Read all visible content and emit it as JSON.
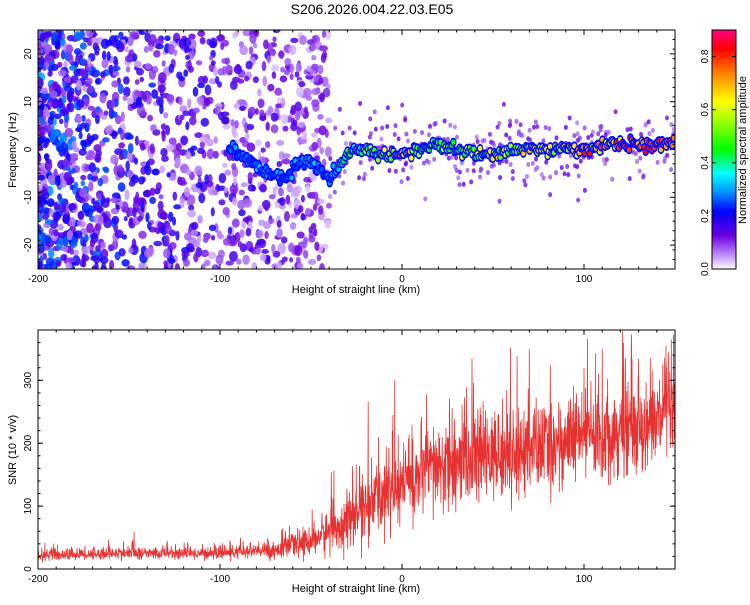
{
  "title": "S206.2026.004.22.03.E05",
  "colorbar": {
    "label": "Normalized spectral amplitude",
    "range": [
      0,
      0.9
    ],
    "ticks": [
      0.0,
      0.2,
      0.4,
      0.6,
      0.8
    ],
    "tick_labels": [
      "0.0",
      "0.2",
      "0.4",
      "0.6",
      "0.8"
    ]
  },
  "chart_data": [
    {
      "type": "heatmap",
      "name": "spectrogram",
      "xlabel": "Height of straight line (km)",
      "ylabel": "Frequency (Hz)",
      "xlim": [
        -200,
        150
      ],
      "ylim": [
        -25,
        25
      ],
      "xticks": [
        -200,
        -100,
        0,
        100
      ],
      "xtick_labels": [
        "-200",
        "-100",
        "0",
        "100"
      ],
      "yticks": [
        -20,
        -10,
        0,
        10,
        20
      ],
      "ytick_labels": [
        "-20",
        "-10",
        "0",
        "10",
        "20"
      ],
      "ridge": {
        "description": "frequency of peak amplitude vs height",
        "x": [
          -95,
          -85,
          -75,
          -65,
          -55,
          -45,
          -40,
          -30,
          -20,
          -10,
          0,
          10,
          20,
          30,
          40,
          50,
          60,
          70,
          80,
          90,
          100,
          110,
          120,
          130,
          140,
          150
        ],
        "freq": [
          0,
          -2,
          -5,
          -6,
          -2,
          -4,
          -7,
          -1,
          0,
          -1,
          -1,
          0,
          1,
          0,
          -1,
          -1,
          0,
          0,
          0,
          0,
          0,
          1,
          1,
          1,
          1,
          1
        ],
        "amp": [
          0.3,
          0.3,
          0.35,
          0.3,
          0.3,
          0.35,
          0.3,
          0.5,
          0.55,
          0.6,
          0.75,
          0.55,
          0.55,
          0.6,
          0.6,
          0.65,
          0.6,
          0.7,
          0.65,
          0.7,
          0.8,
          0.75,
          0.85,
          0.85,
          0.9,
          0.8
        ]
      },
      "noise": {
        "description": "scattered low-amplitude energy at heights below about -40 km",
        "x_range": [
          -200,
          -40
        ],
        "amp_range": [
          0.05,
          0.3
        ]
      }
    },
    {
      "type": "line",
      "name": "snr",
      "xlabel": "Height of straight line (km)",
      "ylabel": "SNR (10 * v/v)",
      "xlim": [
        -200,
        150
      ],
      "ylim": [
        0,
        380
      ],
      "xticks": [
        -200,
        -100,
        0,
        100
      ],
      "xtick_labels": [
        "-200",
        "-100",
        "0",
        "100"
      ],
      "yticks": [
        0,
        100,
        200,
        300
      ],
      "ytick_labels": [
        "0",
        "100",
        "200",
        "300"
      ],
      "color": "#e83232",
      "trend": {
        "description": "mean SNR vs height; signal is noisy around this mean",
        "x": [
          -200,
          -150,
          -100,
          -70,
          -50,
          -40,
          -30,
          -20,
          -10,
          0,
          10,
          20,
          40,
          60,
          80,
          100,
          120,
          140,
          150
        ],
        "mean": [
          22,
          25,
          25,
          30,
          45,
          60,
          75,
          100,
          120,
          135,
          150,
          160,
          175,
          185,
          195,
          210,
          220,
          235,
          245
        ],
        "spread": [
          8,
          8,
          8,
          12,
          20,
          30,
          35,
          45,
          50,
          55,
          55,
          60,
          60,
          60,
          60,
          60,
          60,
          60,
          60
        ]
      },
      "peaks": [
        {
          "x": -5,
          "y": 245
        },
        {
          "x": -4,
          "y": 300
        },
        {
          "x": 70,
          "y": 350
        },
        {
          "x": 100,
          "y": 320
        },
        {
          "x": 110,
          "y": 350
        },
        {
          "x": 145,
          "y": 355
        },
        {
          "x": 148,
          "y": 365
        }
      ]
    }
  ]
}
